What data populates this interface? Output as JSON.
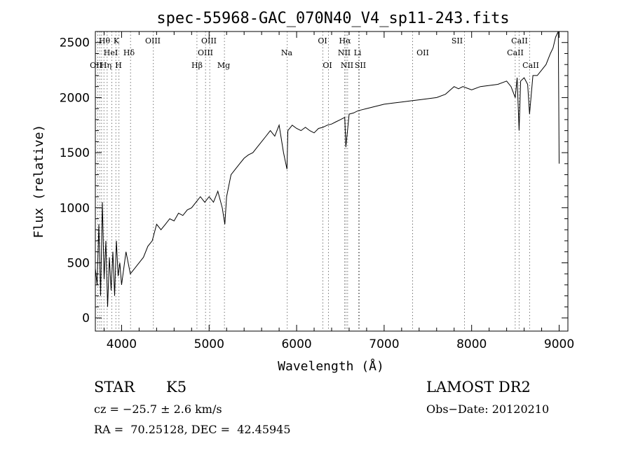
{
  "chart_data": {
    "type": "line",
    "title": "spec-55968-GAC_070N40_V4_sp11-243.fits",
    "xlabel": "Wavelength (Å)",
    "ylabel": "Flux (relative)",
    "xlim": [
      3700,
      9100
    ],
    "ylim": [
      -120,
      2600
    ],
    "xticks": [
      4000,
      5000,
      6000,
      7000,
      8000,
      9000
    ],
    "yticks": [
      0,
      500,
      1000,
      1500,
      2000,
      2500
    ],
    "grid": false,
    "series": [
      {
        "x": [
          3700,
          3720,
          3740,
          3760,
          3780,
          3800,
          3820,
          3840,
          3860,
          3880,
          3900,
          3920,
          3940,
          3960,
          3980,
          4000,
          4050,
          4100,
          4150,
          4200,
          4250,
          4300,
          4350,
          4400,
          4450,
          4500,
          4550,
          4600,
          4650,
          4700,
          4750,
          4800,
          4850,
          4900,
          4950,
          5000,
          5050,
          5100,
          5150,
          5180,
          5200,
          5250,
          5300,
          5350,
          5400,
          5450,
          5500,
          5550,
          5600,
          5650,
          5700,
          5750,
          5800,
          5850,
          5890,
          5900,
          5950,
          6000,
          6050,
          6100,
          6150,
          6200,
          6250,
          6300,
          6350,
          6400,
          6450,
          6500,
          6550,
          6563,
          6600,
          6650,
          6700,
          6750,
          6800,
          6900,
          7000,
          7100,
          7200,
          7300,
          7400,
          7500,
          7600,
          7700,
          7800,
          7850,
          7900,
          8000,
          8100,
          8200,
          8300,
          8400,
          8450,
          8498,
          8520,
          8542,
          8560,
          8600,
          8640,
          8662,
          8700,
          8750,
          8800,
          8850,
          8900,
          8930,
          8960,
          8990,
          9000
        ],
        "y": [
          450,
          300,
          850,
          200,
          1050,
          350,
          700,
          100,
          550,
          250,
          600,
          200,
          700,
          380,
          500,
          300,
          600,
          400,
          450,
          500,
          550,
          650,
          700,
          850,
          800,
          850,
          900,
          880,
          950,
          930,
          980,
          1000,
          1050,
          1100,
          1050,
          1100,
          1050,
          1150,
          1000,
          850,
          1100,
          1300,
          1350,
          1400,
          1450,
          1480,
          1500,
          1550,
          1600,
          1650,
          1700,
          1650,
          1750,
          1500,
          1350,
          1700,
          1750,
          1720,
          1700,
          1730,
          1700,
          1680,
          1720,
          1730,
          1750,
          1760,
          1780,
          1800,
          1820,
          1550,
          1850,
          1860,
          1880,
          1890,
          1900,
          1920,
          1940,
          1950,
          1960,
          1970,
          1980,
          1990,
          2000,
          2030,
          2100,
          2080,
          2100,
          2070,
          2100,
          2110,
          2120,
          2150,
          2100,
          2000,
          2180,
          1700,
          2150,
          2180,
          2120,
          1850,
          2200,
          2200,
          2250,
          2300,
          2400,
          2450,
          2550,
          2600,
          1400
        ]
      }
    ],
    "line_annotations": {
      "top_row": [
        "Hθ",
        "K",
        "OIII",
        "OIII",
        "OI",
        "Hα",
        "SII",
        "CaII"
      ],
      "middle_row": [
        "HeI",
        "Hδ",
        "OIII",
        "Na",
        "NII",
        "Li",
        "OII",
        "CaII"
      ],
      "bottom_row": [
        "OII",
        "Hη",
        "H",
        "Hβ",
        "Mg",
        "OI",
        "NII",
        "SII",
        "CaII"
      ],
      "line_wavelengths": [
        3727,
        3750,
        3771,
        3798,
        3835,
        3889,
        3934,
        3970,
        4102,
        4363,
        4861,
        4959,
        5007,
        5175,
        5893,
        6300,
        6363,
        6548,
        6563,
        6583,
        6708,
        6716,
        7325,
        7919,
        8498,
        8542,
        8662
      ]
    }
  },
  "info": {
    "object_class": "STAR",
    "subclass": "K5",
    "survey": "LAMOST DR2",
    "velocity": "cz = −25.7 ± 2.6 km/s",
    "obs_date": "Obs−Date: 20120210",
    "coordinates": "RA =  70.25128, DEC =  42.45945"
  }
}
